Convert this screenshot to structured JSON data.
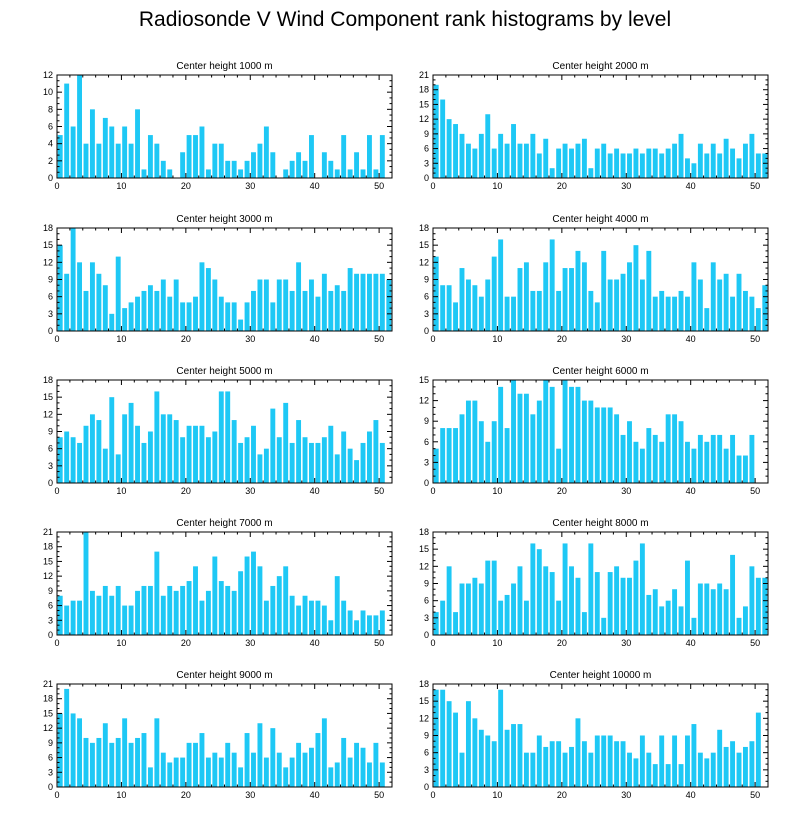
{
  "title": "Radiosonde V Wind Component rank histograms by level",
  "bar_color": "#1ec8f5",
  "chart_data": [
    {
      "type": "bar",
      "title": "Center height 1000 m",
      "xlim": [
        0,
        52
      ],
      "ylim": [
        0,
        12
      ],
      "xticks": [
        0,
        10,
        20,
        30,
        40,
        50
      ],
      "yticks": [
        0,
        2,
        4,
        6,
        8,
        10,
        12
      ],
      "x": [
        0,
        1,
        2,
        3,
        4,
        5,
        6,
        7,
        8,
        9,
        10,
        11,
        12,
        13,
        14,
        15,
        16,
        17,
        18,
        19,
        20,
        21,
        22,
        23,
        24,
        25,
        26,
        27,
        28,
        29,
        30,
        31,
        32,
        33,
        34,
        35,
        36,
        37,
        38,
        39,
        40,
        41,
        42,
        43,
        44,
        45,
        46,
        47,
        48,
        49,
        50,
        51
      ],
      "values": [
        5,
        11,
        6,
        12,
        4,
        8,
        4,
        7,
        6,
        4,
        6,
        4,
        8,
        1,
        5,
        4,
        2,
        1,
        0,
        3,
        5,
        5,
        6,
        1,
        4,
        4,
        2,
        2,
        1,
        2,
        3,
        4,
        6,
        3,
        0,
        1,
        2,
        3,
        2,
        5,
        0,
        3,
        2,
        1,
        5,
        1,
        3,
        1,
        5,
        1,
        5,
        0
      ]
    },
    {
      "type": "bar",
      "title": "Center height 2000 m",
      "xlim": [
        0,
        52
      ],
      "ylim": [
        0,
        21
      ],
      "xticks": [
        0,
        10,
        20,
        30,
        40,
        50
      ],
      "yticks": [
        0,
        3,
        6,
        9,
        12,
        15,
        18,
        21
      ],
      "x": [
        0,
        1,
        2,
        3,
        4,
        5,
        6,
        7,
        8,
        9,
        10,
        11,
        12,
        13,
        14,
        15,
        16,
        17,
        18,
        19,
        20,
        21,
        22,
        23,
        24,
        25,
        26,
        27,
        28,
        29,
        30,
        31,
        32,
        33,
        34,
        35,
        36,
        37,
        38,
        39,
        40,
        41,
        42,
        43,
        44,
        45,
        46,
        47,
        48,
        49,
        50,
        51
      ],
      "values": [
        19,
        16,
        12,
        11,
        9,
        7,
        6,
        9,
        13,
        6,
        9,
        7,
        11,
        7,
        7,
        9,
        5,
        8,
        2,
        6,
        7,
        6,
        7,
        8,
        2,
        6,
        7,
        5,
        6,
        5,
        5,
        6,
        5,
        6,
        6,
        5,
        6,
        7,
        9,
        4,
        3,
        7,
        5,
        7,
        5,
        8,
        6,
        4,
        7,
        9,
        5,
        5
      ]
    },
    {
      "type": "bar",
      "title": "Center height 3000 m",
      "xlim": [
        0,
        52
      ],
      "ylim": [
        0,
        18
      ],
      "xticks": [
        0,
        10,
        20,
        30,
        40,
        50
      ],
      "yticks": [
        0,
        3,
        6,
        9,
        12,
        15,
        18
      ],
      "x": [
        0,
        1,
        2,
        3,
        4,
        5,
        6,
        7,
        8,
        9,
        10,
        11,
        12,
        13,
        14,
        15,
        16,
        17,
        18,
        19,
        20,
        21,
        22,
        23,
        24,
        25,
        26,
        27,
        28,
        29,
        30,
        31,
        32,
        33,
        34,
        35,
        36,
        37,
        38,
        39,
        40,
        41,
        42,
        43,
        44,
        45,
        46,
        47,
        48,
        49,
        50,
        51
      ],
      "values": [
        15,
        10,
        18,
        12,
        7,
        12,
        10,
        8,
        3,
        13,
        4,
        5,
        6,
        7,
        8,
        7,
        9,
        6,
        9,
        5,
        5,
        6,
        12,
        11,
        9,
        6,
        5,
        5,
        2,
        5,
        7,
        9,
        9,
        5,
        9,
        9,
        7,
        12,
        7,
        9,
        6,
        10,
        7,
        8,
        7,
        11,
        10,
        10,
        10,
        10,
        10,
        9
      ]
    },
    {
      "type": "bar",
      "title": "Center height 4000 m",
      "xlim": [
        0,
        52
      ],
      "ylim": [
        0,
        18
      ],
      "xticks": [
        0,
        10,
        20,
        30,
        40,
        50
      ],
      "yticks": [
        0,
        3,
        6,
        9,
        12,
        15,
        18
      ],
      "x": [
        0,
        1,
        2,
        3,
        4,
        5,
        6,
        7,
        8,
        9,
        10,
        11,
        12,
        13,
        14,
        15,
        16,
        17,
        18,
        19,
        20,
        21,
        22,
        23,
        24,
        25,
        26,
        27,
        28,
        29,
        30,
        31,
        32,
        33,
        34,
        35,
        36,
        37,
        38,
        39,
        40,
        41,
        42,
        43,
        44,
        45,
        46,
        47,
        48,
        49,
        50,
        51
      ],
      "values": [
        13,
        8,
        8,
        5,
        11,
        9,
        8,
        6,
        9,
        13,
        16,
        6,
        6,
        11,
        12,
        7,
        7,
        12,
        16,
        7,
        11,
        11,
        14,
        12,
        7,
        5,
        14,
        9,
        9,
        10,
        12,
        15,
        9,
        14,
        6,
        7,
        6,
        6,
        7,
        6,
        12,
        9,
        4,
        12,
        9,
        10,
        6,
        10,
        7,
        6,
        4,
        8
      ]
    },
    {
      "type": "bar",
      "title": "Center height 5000 m",
      "xlim": [
        0,
        52
      ],
      "ylim": [
        0,
        18
      ],
      "xticks": [
        0,
        10,
        20,
        30,
        40,
        50
      ],
      "yticks": [
        0,
        3,
        6,
        9,
        12,
        15,
        18
      ],
      "x": [
        0,
        1,
        2,
        3,
        4,
        5,
        6,
        7,
        8,
        9,
        10,
        11,
        12,
        13,
        14,
        15,
        16,
        17,
        18,
        19,
        20,
        21,
        22,
        23,
        24,
        25,
        26,
        27,
        28,
        29,
        30,
        31,
        32,
        33,
        34,
        35,
        36,
        37,
        38,
        39,
        40,
        41,
        42,
        43,
        44,
        45,
        46,
        47,
        48,
        49,
        50,
        51
      ],
      "values": [
        8,
        9,
        8,
        7,
        10,
        12,
        11,
        6,
        15,
        5,
        12,
        14,
        10,
        7,
        9,
        16,
        12,
        12,
        11,
        8,
        10,
        10,
        10,
        8,
        9,
        16,
        16,
        11,
        7,
        8,
        10,
        5,
        6,
        13,
        8,
        14,
        7,
        11,
        8,
        7,
        7,
        8,
        10,
        5,
        9,
        6,
        4,
        7,
        9,
        11,
        7,
        0
      ]
    },
    {
      "type": "bar",
      "title": "Center height 6000 m",
      "xlim": [
        0,
        52
      ],
      "ylim": [
        0,
        15
      ],
      "xticks": [
        0,
        10,
        20,
        30,
        40,
        50
      ],
      "yticks": [
        0,
        3,
        6,
        9,
        12,
        15
      ],
      "x": [
        0,
        1,
        2,
        3,
        4,
        5,
        6,
        7,
        8,
        9,
        10,
        11,
        12,
        13,
        14,
        15,
        16,
        17,
        18,
        19,
        20,
        21,
        22,
        23,
        24,
        25,
        26,
        27,
        28,
        29,
        30,
        31,
        32,
        33,
        34,
        35,
        36,
        37,
        38,
        39,
        40,
        41,
        42,
        43,
        44,
        45,
        46,
        47,
        48,
        49,
        50,
        51
      ],
      "values": [
        5,
        8,
        8,
        8,
        10,
        12,
        12,
        9,
        6,
        9,
        14,
        8,
        15,
        13,
        13,
        10,
        12,
        15,
        14,
        5,
        15,
        14,
        14,
        12,
        12,
        11,
        11,
        11,
        10,
        7,
        9,
        6,
        5,
        8,
        7,
        6,
        10,
        10,
        9,
        6,
        5,
        7,
        6,
        7,
        7,
        5,
        7,
        4,
        4,
        7,
        0,
        0
      ]
    },
    {
      "type": "bar",
      "title": "Center height 7000 m",
      "xlim": [
        0,
        52
      ],
      "ylim": [
        0,
        21
      ],
      "xticks": [
        0,
        10,
        20,
        30,
        40,
        50
      ],
      "yticks": [
        0,
        3,
        6,
        9,
        12,
        15,
        18,
        21
      ],
      "x": [
        0,
        1,
        2,
        3,
        4,
        5,
        6,
        7,
        8,
        9,
        10,
        11,
        12,
        13,
        14,
        15,
        16,
        17,
        18,
        19,
        20,
        21,
        22,
        23,
        24,
        25,
        26,
        27,
        28,
        29,
        30,
        31,
        32,
        33,
        34,
        35,
        36,
        37,
        38,
        39,
        40,
        41,
        42,
        43,
        44,
        45,
        46,
        47,
        48,
        49,
        50,
        51
      ],
      "values": [
        8,
        6,
        7,
        7,
        21,
        9,
        8,
        10,
        8,
        10,
        6,
        6,
        9,
        10,
        10,
        17,
        8,
        10,
        9,
        10,
        11,
        14,
        7,
        9,
        16,
        11,
        10,
        9,
        13,
        16,
        17,
        14,
        7,
        10,
        12,
        14,
        8,
        6,
        8,
        7,
        7,
        6,
        3,
        12,
        7,
        5,
        3,
        5,
        4,
        4,
        5,
        0
      ]
    },
    {
      "type": "bar",
      "title": "Center height 8000 m",
      "xlim": [
        0,
        52
      ],
      "ylim": [
        0,
        18
      ],
      "xticks": [
        0,
        10,
        20,
        30,
        40,
        50
      ],
      "yticks": [
        0,
        3,
        6,
        9,
        12,
        15,
        18
      ],
      "x": [
        0,
        1,
        2,
        3,
        4,
        5,
        6,
        7,
        8,
        9,
        10,
        11,
        12,
        13,
        14,
        15,
        16,
        17,
        18,
        19,
        20,
        21,
        22,
        23,
        24,
        25,
        26,
        27,
        28,
        29,
        30,
        31,
        32,
        33,
        34,
        35,
        36,
        37,
        38,
        39,
        40,
        41,
        42,
        43,
        44,
        45,
        46,
        47,
        48,
        49,
        50,
        51
      ],
      "values": [
        4,
        6,
        12,
        4,
        9,
        9,
        10,
        9,
        13,
        13,
        6,
        7,
        9,
        12,
        6,
        16,
        15,
        12,
        11,
        6,
        16,
        12,
        10,
        4,
        16,
        11,
        3,
        11,
        12,
        10,
        10,
        13,
        16,
        7,
        8,
        5,
        6,
        8,
        5,
        13,
        3,
        9,
        9,
        8,
        9,
        8,
        14,
        3,
        5,
        12,
        10,
        10
      ]
    },
    {
      "type": "bar",
      "title": "Center height 9000 m",
      "xlim": [
        0,
        52
      ],
      "ylim": [
        0,
        21
      ],
      "xticks": [
        0,
        10,
        20,
        30,
        40,
        50
      ],
      "yticks": [
        0,
        3,
        6,
        9,
        12,
        15,
        18,
        21
      ],
      "x": [
        0,
        1,
        2,
        3,
        4,
        5,
        6,
        7,
        8,
        9,
        10,
        11,
        12,
        13,
        14,
        15,
        16,
        17,
        18,
        19,
        20,
        21,
        22,
        23,
        24,
        25,
        26,
        27,
        28,
        29,
        30,
        31,
        32,
        33,
        34,
        35,
        36,
        37,
        38,
        39,
        40,
        41,
        42,
        43,
        44,
        45,
        46,
        47,
        48,
        49,
        50,
        51
      ],
      "values": [
        15,
        20,
        15,
        14,
        10,
        9,
        10,
        13,
        9,
        10,
        14,
        9,
        10,
        11,
        4,
        14,
        7,
        5,
        6,
        6,
        9,
        9,
        11,
        6,
        7,
        6,
        9,
        7,
        4,
        11,
        7,
        13,
        6,
        12,
        7,
        4,
        6,
        9,
        7,
        8,
        11,
        14,
        4,
        5,
        10,
        6,
        9,
        8,
        5,
        9,
        5,
        0
      ]
    },
    {
      "type": "bar",
      "title": "Center height 10000 m",
      "xlim": [
        0,
        52
      ],
      "ylim": [
        0,
        18
      ],
      "xticks": [
        0,
        10,
        20,
        30,
        40,
        50
      ],
      "yticks": [
        0,
        3,
        6,
        9,
        12,
        15,
        18
      ],
      "x": [
        0,
        1,
        2,
        3,
        4,
        5,
        6,
        7,
        8,
        9,
        10,
        11,
        12,
        13,
        14,
        15,
        16,
        17,
        18,
        19,
        20,
        21,
        22,
        23,
        24,
        25,
        26,
        27,
        28,
        29,
        30,
        31,
        32,
        33,
        34,
        35,
        36,
        37,
        38,
        39,
        40,
        41,
        42,
        43,
        44,
        45,
        46,
        47,
        48,
        49,
        50,
        51
      ],
      "values": [
        17,
        17,
        15,
        13,
        6,
        15,
        12,
        10,
        9,
        8,
        17,
        10,
        11,
        11,
        6,
        6,
        9,
        7,
        8,
        8,
        6,
        7,
        12,
        8,
        6,
        9,
        9,
        9,
        8,
        8,
        6,
        5,
        9,
        6,
        4,
        9,
        4,
        9,
        4,
        9,
        11,
        6,
        5,
        6,
        10,
        7,
        8,
        6,
        7,
        8,
        13,
        0
      ]
    }
  ]
}
